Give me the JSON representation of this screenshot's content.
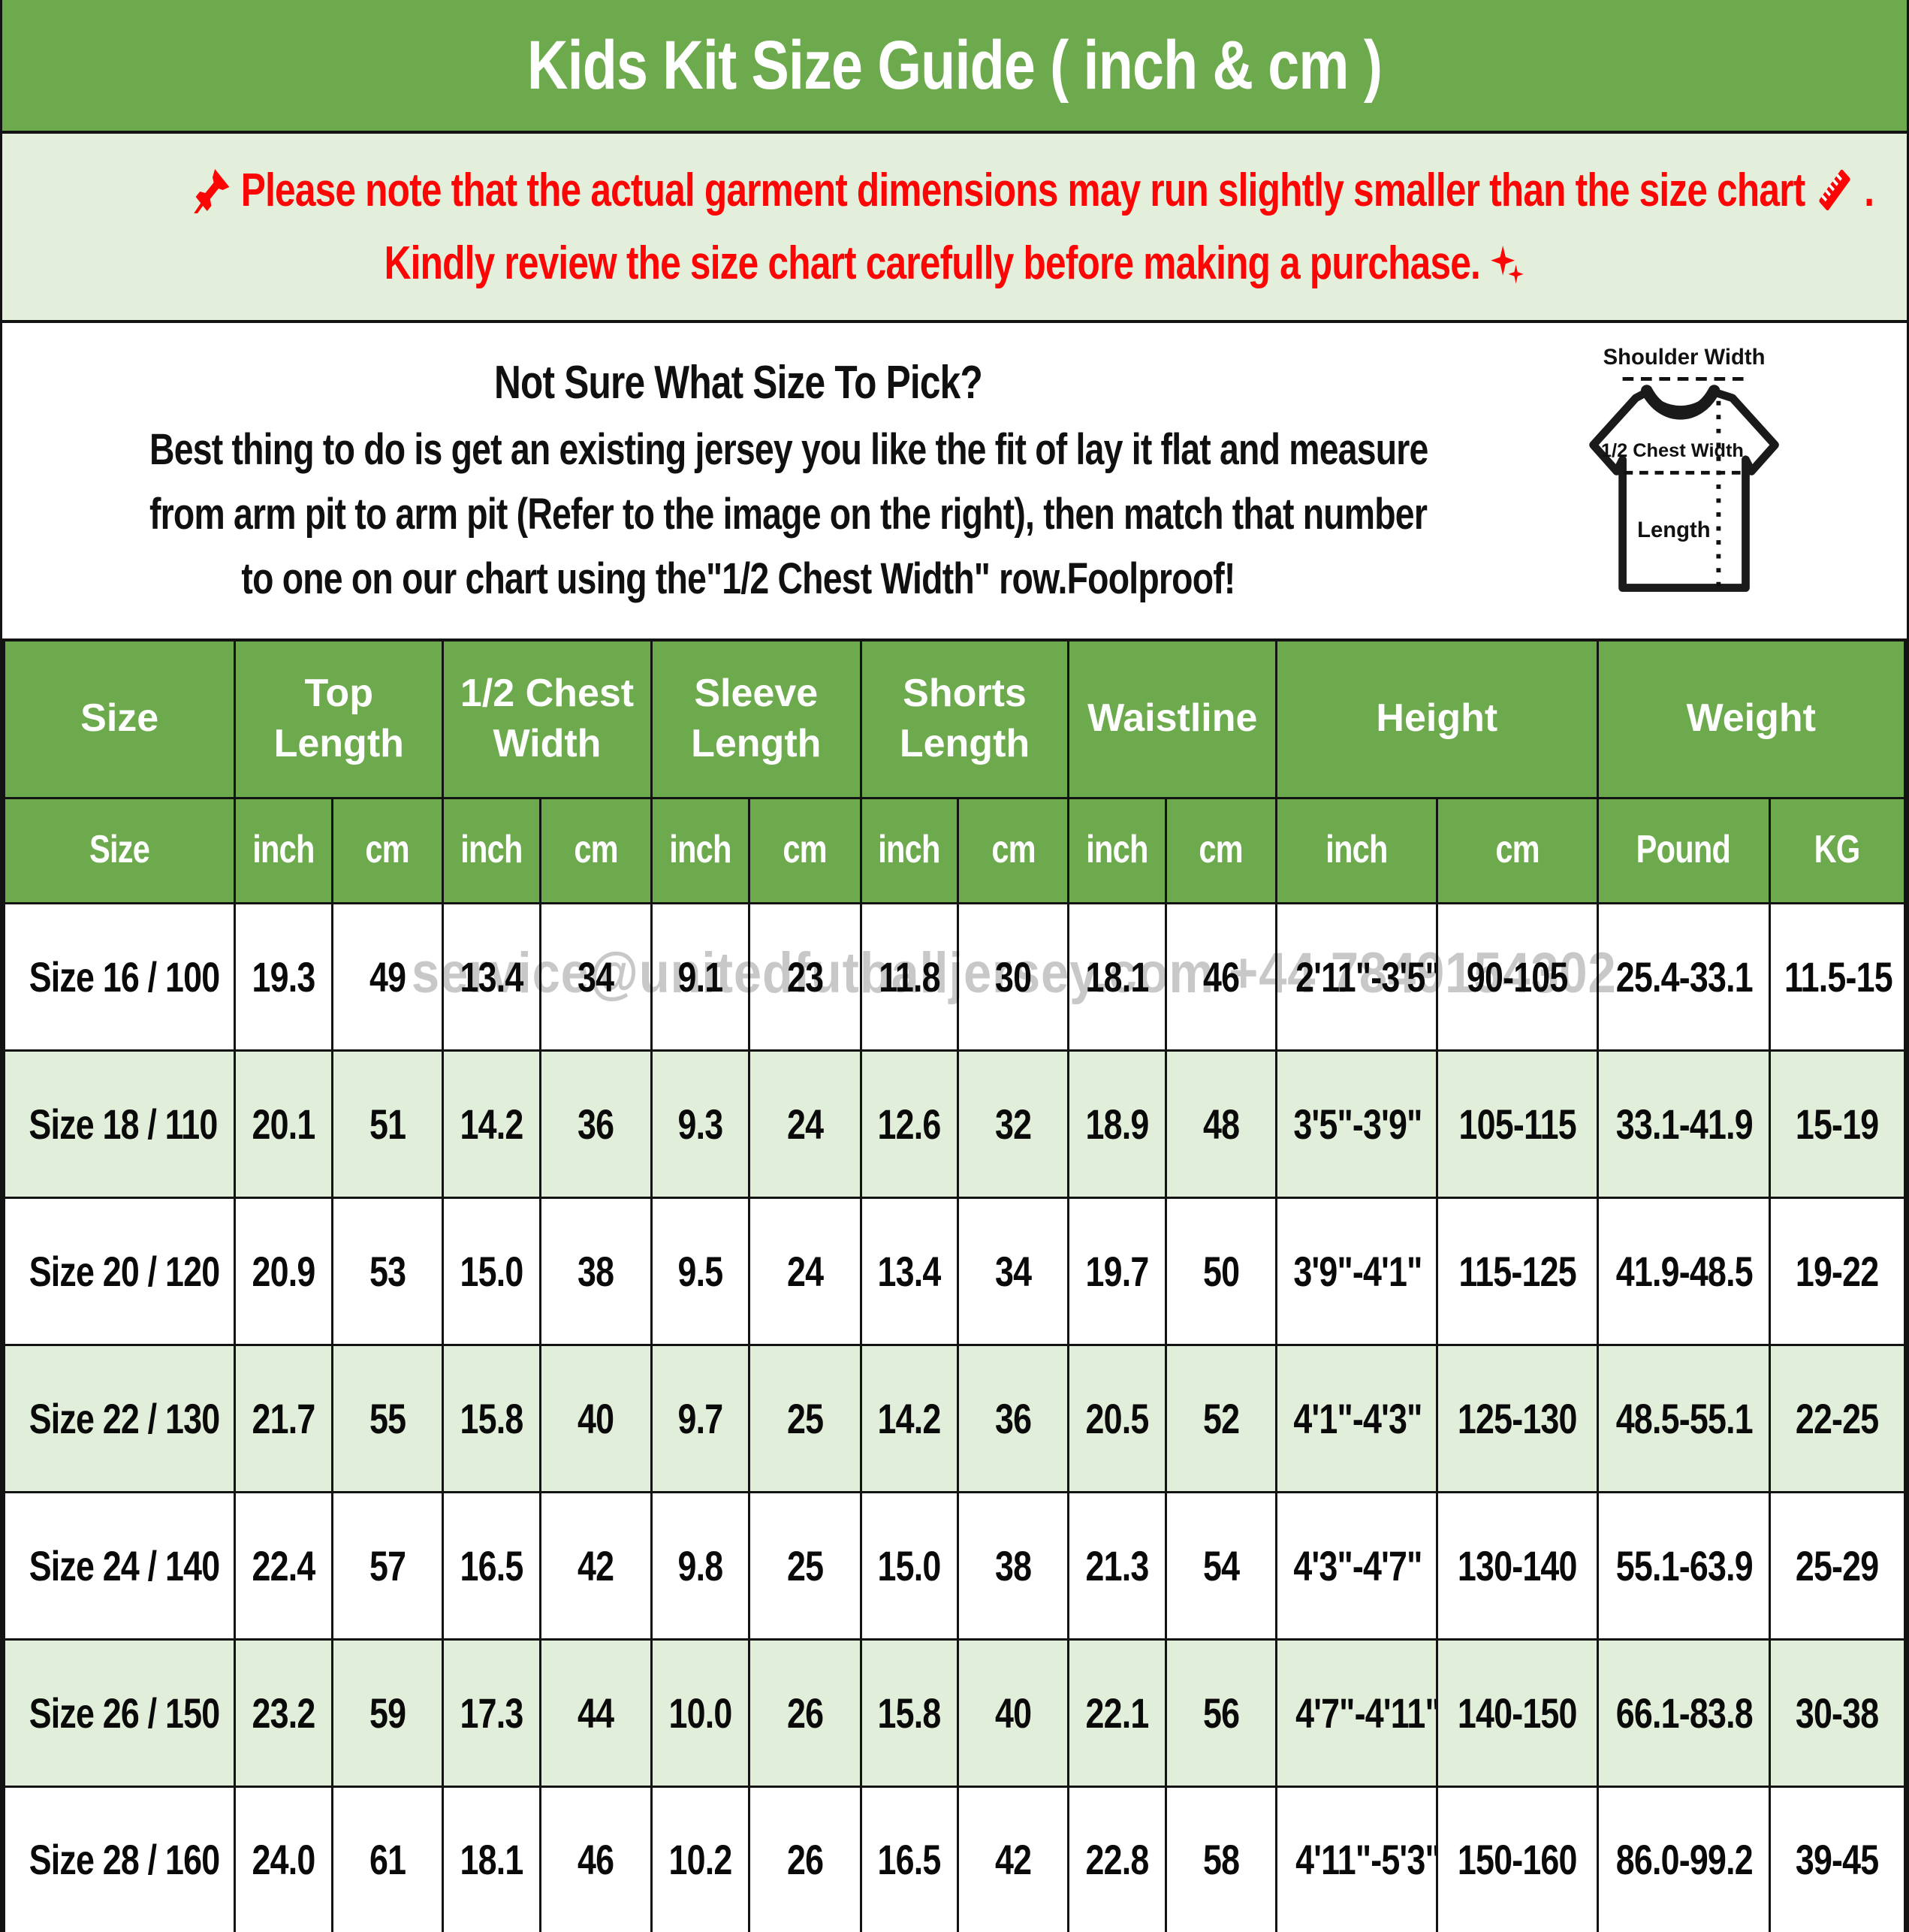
{
  "title": "Kids Kit Size Guide ( inch & cm )",
  "notice": {
    "line1": "Please note that the actual garment dimensions may run slightly smaller than the size chart",
    "line1_suffix": " .",
    "line2": "Kindly review the size chart carefully before making a purchase.",
    "text_color": "#fb0505",
    "background": "#e4efdb"
  },
  "icons": {
    "pin": "pushpin-icon",
    "ruler": "ruler-icon",
    "sparkles": "sparkles-icon"
  },
  "sizing_help": {
    "heading": "Not Sure What Size To Pick?",
    "line1": "Best thing to do is get an existing jersey you like the fit of lay it flat and measure",
    "line2": "from arm pit to arm pit (Refer to the image on the right), then match that number",
    "line3": "to one on our chart using the\"1/2 Chest Width\" row.Foolproof!"
  },
  "shirt_diagram": {
    "shoulder_label": "Shoulder Width",
    "chest_label": "1/2 Chest Width",
    "length_label": "Length"
  },
  "watermark": "service@unitedfutballjersey.com +44 7849154302",
  "size_table": {
    "header_background": "#6caa4d",
    "header_text_color": "#ffffff",
    "header_groups": [
      {
        "label": "Size",
        "span": 1
      },
      {
        "label": "Top Length",
        "span": 2
      },
      {
        "label": "1/2 Chest Width",
        "span": 2
      },
      {
        "label": "Sleeve Length",
        "span": 2
      },
      {
        "label": "Shorts Length",
        "span": 2
      },
      {
        "label": "Waistline",
        "span": 2
      },
      {
        "label": "Height",
        "span": 2
      },
      {
        "label": "Weight",
        "span": 2
      }
    ],
    "subheader": [
      "Size",
      "inch",
      "cm",
      "inch",
      "cm",
      "inch",
      "cm",
      "inch",
      "cm",
      "inch",
      "cm",
      "inch",
      "cm",
      "Pound",
      "KG"
    ],
    "rows": [
      [
        "Size 16 / 100",
        "19.3",
        "49",
        "13.4",
        "34",
        "9.1",
        "23",
        "11.8",
        "30",
        "18.1",
        "46",
        "2'11\"-3'5\"",
        "90-105",
        "25.4-33.1",
        "11.5-15"
      ],
      [
        "Size 18 / 110",
        "20.1",
        "51",
        "14.2",
        "36",
        "9.3",
        "24",
        "12.6",
        "32",
        "18.9",
        "48",
        "3'5\"-3'9\"",
        "105-115",
        "33.1-41.9",
        "15-19"
      ],
      [
        "Size 20 / 120",
        "20.9",
        "53",
        "15.0",
        "38",
        "9.5",
        "24",
        "13.4",
        "34",
        "19.7",
        "50",
        "3'9\"-4'1\"",
        "115-125",
        "41.9-48.5",
        "19-22"
      ],
      [
        "Size 22 / 130",
        "21.7",
        "55",
        "15.8",
        "40",
        "9.7",
        "25",
        "14.2",
        "36",
        "20.5",
        "52",
        "4'1\"-4'3\"",
        "125-130",
        "48.5-55.1",
        "22-25"
      ],
      [
        "Size 24 / 140",
        "22.4",
        "57",
        "16.5",
        "42",
        "9.8",
        "25",
        "15.0",
        "38",
        "21.3",
        "54",
        "4'3\"-4'7\"",
        "130-140",
        "55.1-63.9",
        "25-29"
      ],
      [
        "Size 26 / 150",
        "23.2",
        "59",
        "17.3",
        "44",
        "10.0",
        "26",
        "15.8",
        "40",
        "22.1",
        "56",
        "4'7\"-4'11\"",
        "140-150",
        "66.1-83.8",
        "30-38"
      ],
      [
        "Size 28 / 160",
        "24.0",
        "61",
        "18.1",
        "46",
        "10.2",
        "26",
        "16.5",
        "42",
        "22.8",
        "58",
        "4'11\"-5'3\"",
        "150-160",
        "86.0-99.2",
        "39-45"
      ]
    ],
    "row_backgrounds": [
      "#ffffff",
      "#e1eed9",
      "#ffffff",
      "#e1eed9",
      "#ffffff",
      "#e1eed9",
      "#ffffff"
    ]
  },
  "colors": {
    "header_green": "#6caa4d",
    "notice_bg": "#e4efdb",
    "row_alt_green": "#e1eed9",
    "accent_red": "#fb0505",
    "border_black": "#131313",
    "watermark_gray": "#c8c8c8"
  }
}
